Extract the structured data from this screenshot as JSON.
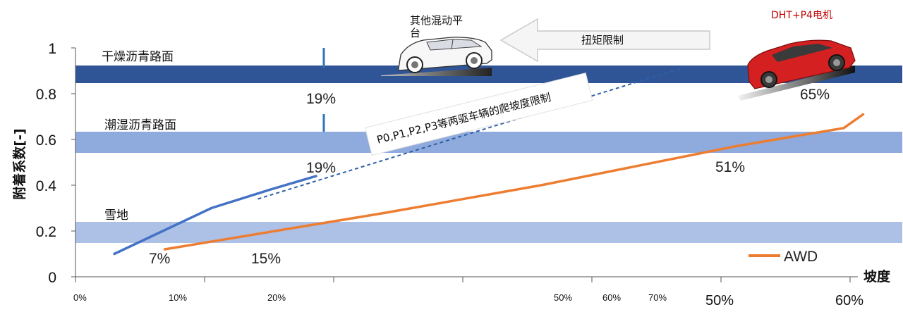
{
  "chart_data": {
    "type": "line",
    "title": "",
    "xlabel": "坡度",
    "ylabel": "附着系数[-]",
    "ylim": [
      0,
      1
    ],
    "y_ticks": [
      "0",
      "0.2",
      "0.4",
      "0.6",
      "0.8",
      "1"
    ],
    "x_ticks_small": [
      "0%",
      "10%",
      "20%",
      "50%",
      "60%",
      "70%"
    ],
    "x_ticks_large": [
      "50%",
      "60%"
    ],
    "road_bands": [
      {
        "label": "干燥沥青路面",
        "y_center": 0.885,
        "color": "#2f5597"
      },
      {
        "label": "潮湿沥青路面",
        "y_center": 0.59,
        "color": "#8faadc"
      },
      {
        "label": "雪地",
        "y_center": 0.19,
        "color": "#adc0e6"
      }
    ],
    "series": [
      {
        "name": "",
        "color": "#4472c4",
        "points": [
          [
            0.1,
            0.1
          ],
          [
            0.35,
            0.3
          ],
          [
            0.5,
            0.38
          ],
          [
            0.62,
            0.44
          ]
        ]
      },
      {
        "name": "",
        "color": "#4472c4",
        "dashed": true,
        "points": [
          [
            0.47,
            0.34
          ],
          [
            1.56,
            0.91
          ]
        ]
      },
      {
        "name": "AWD",
        "color": "#ed7d31",
        "points": [
          [
            0.23,
            0.12
          ],
          [
            0.8,
            0.28
          ],
          [
            1.2,
            0.4
          ],
          [
            1.7,
            0.57
          ],
          [
            1.98,
            0.65
          ],
          [
            2.03,
            0.71
          ]
        ]
      }
    ],
    "annotations": [
      {
        "text": "19%",
        "role": "dry-blue-value"
      },
      {
        "text": "19%",
        "role": "wet-blue-value"
      },
      {
        "text": "7%",
        "role": "snow-blue-value"
      },
      {
        "text": "15%",
        "role": "snow-awd-value"
      },
      {
        "text": "51%",
        "role": "wet-awd-value"
      },
      {
        "text": "65%",
        "role": "dry-awd-value"
      }
    ],
    "limit_note": "P0,P1,P2,P3等两驱车辆的爬坡度限制",
    "torque_limit": "扭矩限制",
    "other_hybrid": "其他混动平台",
    "dht_label": "DHT+P4电机",
    "legend": {
      "position": "bottom-right",
      "entry": "AWD"
    }
  }
}
